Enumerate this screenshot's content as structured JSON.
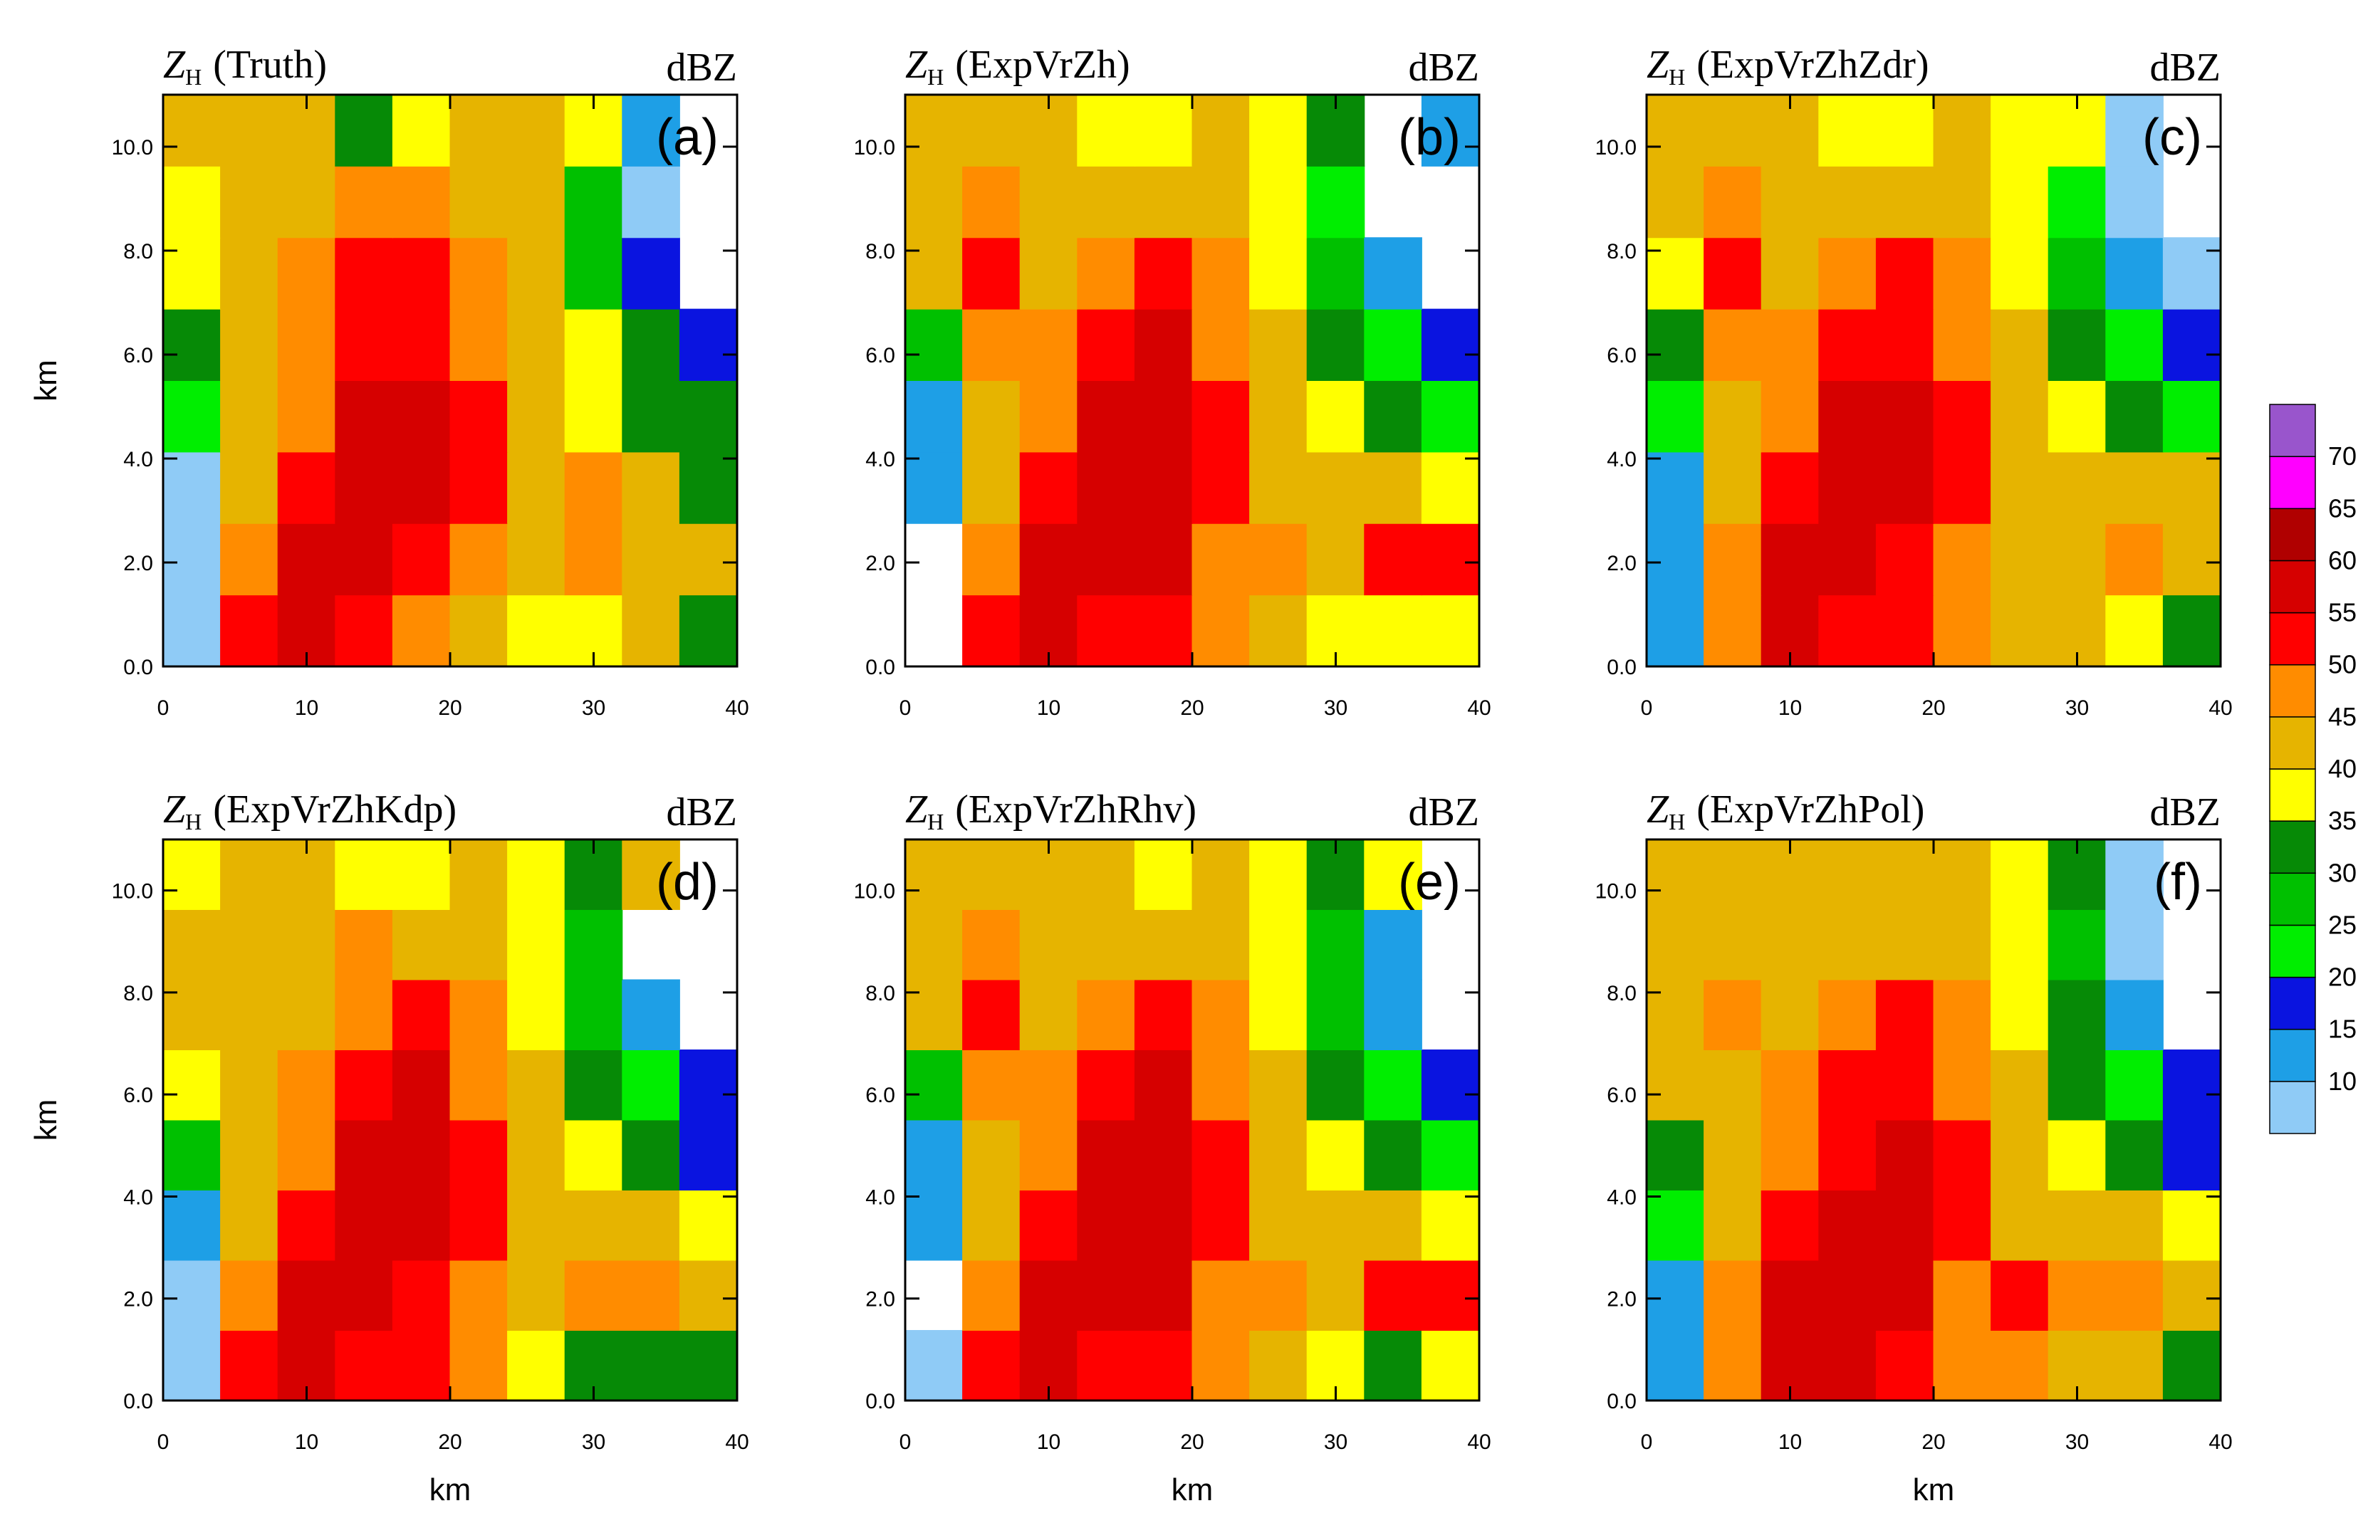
{
  "chart_data": [
    {
      "type": "contour",
      "title_symbol": "Z",
      "title_subscript": "H",
      "title": "(Truth)",
      "units": "dBZ",
      "panel_label": "(a)",
      "ylabel": "km",
      "xlim": [
        0,
        40
      ],
      "ylim": [
        0,
        11
      ],
      "xticks": [
        0,
        10,
        20,
        30,
        40
      ],
      "yticks": [
        {
          "value": 0,
          "label": "0.0"
        },
        {
          "value": 2,
          "label": "2.0"
        },
        {
          "value": 4,
          "label": "4.0"
        },
        {
          "value": 6,
          "label": "6.0"
        },
        {
          "value": 8,
          "label": "8.0"
        },
        {
          "value": 10,
          "label": "10.0"
        }
      ],
      "x": [
        2,
        6,
        10,
        14,
        18,
        22,
        26,
        30,
        34,
        38
      ],
      "y": [
        0.6875,
        2.0625,
        3.4375,
        4.8125,
        6.1875,
        7.5625,
        8.9375,
        10.3125
      ],
      "z": [
        [
          8,
          53,
          57,
          53,
          48,
          44,
          37,
          38,
          40,
          34
        ],
        [
          8,
          48,
          58,
          57,
          52,
          47,
          43,
          45,
          44,
          42
        ],
        [
          8,
          43,
          52,
          58,
          57,
          50,
          43,
          45,
          40,
          33
        ],
        [
          20,
          42,
          47,
          55,
          58,
          50,
          41,
          37,
          33,
          32
        ],
        [
          30,
          42,
          46,
          52,
          54,
          48,
          40,
          35,
          30,
          15
        ],
        [
          35,
          44,
          45,
          50,
          53,
          47,
          40,
          28,
          15,
          null
        ],
        [
          38,
          42,
          44,
          45,
          47,
          44,
          40,
          25,
          8,
          null
        ],
        [
          40,
          42,
          40,
          33,
          38,
          43,
          40,
          35,
          10,
          null
        ]
      ]
    },
    {
      "type": "contour",
      "title_symbol": "Z",
      "title_subscript": "H",
      "title": "(ExpVrZh)",
      "units": "dBZ",
      "panel_label": "(b)",
      "xlim": [
        0,
        40
      ],
      "ylim": [
        0,
        11
      ],
      "xticks": [
        0,
        10,
        20,
        30,
        40
      ],
      "yticks": [
        {
          "value": 0,
          "label": "0.0"
        },
        {
          "value": 2,
          "label": "2.0"
        },
        {
          "value": 4,
          "label": "4.0"
        },
        {
          "value": 6,
          "label": "6.0"
        },
        {
          "value": 8,
          "label": "8.0"
        },
        {
          "value": 10,
          "label": "10.0"
        }
      ],
      "x": [
        2,
        6,
        10,
        14,
        18,
        22,
        26,
        30,
        34,
        38
      ],
      "y": [
        0.6875,
        2.0625,
        3.4375,
        4.8125,
        6.1875,
        7.5625,
        8.9375,
        10.3125
      ],
      "z": [
        [
          null,
          50,
          55,
          53,
          50,
          45,
          42,
          36,
          38,
          35
        ],
        [
          null,
          47,
          56,
          58,
          55,
          48,
          45,
          44,
          52,
          50
        ],
        [
          10,
          43,
          52,
          58,
          57,
          52,
          43,
          42,
          40,
          38
        ],
        [
          10,
          43,
          48,
          55,
          58,
          52,
          43,
          37,
          33,
          20
        ],
        [
          25,
          46,
          46,
          50,
          55,
          48,
          40,
          33,
          20,
          15
        ],
        [
          40,
          52,
          43,
          47,
          50,
          45,
          38,
          25,
          10,
          null
        ],
        [
          42,
          47,
          43,
          42,
          43,
          42,
          37,
          20,
          null,
          null
        ],
        [
          40,
          42,
          43,
          38,
          38,
          40,
          38,
          30,
          null,
          10
        ]
      ]
    },
    {
      "type": "contour",
      "title_symbol": "Z",
      "title_subscript": "H",
      "title": "(ExpVrZhZdr)",
      "units": "dBZ",
      "panel_label": "(c)",
      "xlim": [
        0,
        40
      ],
      "ylim": [
        0,
        11
      ],
      "xticks": [
        0,
        10,
        20,
        30,
        40
      ],
      "yticks": [
        {
          "value": 0,
          "label": "0.0"
        },
        {
          "value": 2,
          "label": "2.0"
        },
        {
          "value": 4,
          "label": "4.0"
        },
        {
          "value": 6,
          "label": "6.0"
        },
        {
          "value": 8,
          "label": "8.0"
        },
        {
          "value": 10,
          "label": "10.0"
        }
      ],
      "x": [
        2,
        6,
        10,
        14,
        18,
        22,
        26,
        30,
        34,
        38
      ],
      "y": [
        0.6875,
        2.0625,
        3.4375,
        4.8125,
        6.1875,
        7.5625,
        8.9375,
        10.3125
      ],
      "z": [
        [
          10,
          48,
          55,
          53,
          50,
          45,
          42,
          40,
          38,
          33
        ],
        [
          10,
          47,
          56,
          58,
          54,
          48,
          43,
          44,
          45,
          43
        ],
        [
          10,
          43,
          52,
          58,
          57,
          50,
          44,
          43,
          42,
          40
        ],
        [
          20,
          43,
          48,
          55,
          57,
          50,
          42,
          38,
          33,
          20
        ],
        [
          30,
          46,
          46,
          50,
          54,
          47,
          40,
          33,
          20,
          15
        ],
        [
          38,
          52,
          43,
          47,
          50,
          45,
          38,
          25,
          10,
          8
        ],
        [
          40,
          46,
          43,
          42,
          43,
          42,
          38,
          20,
          8,
          null
        ],
        [
          40,
          42,
          43,
          38,
          36,
          40,
          38,
          35,
          8,
          null
        ]
      ]
    },
    {
      "type": "contour",
      "title_symbol": "Z",
      "title_subscript": "H",
      "title": "(ExpVrZhKdp)",
      "units": "dBZ",
      "panel_label": "(d)",
      "ylabel": "km",
      "xlabel": "km",
      "xlim": [
        0,
        40
      ],
      "ylim": [
        0,
        11
      ],
      "xticks": [
        0,
        10,
        20,
        30,
        40
      ],
      "yticks": [
        {
          "value": 0,
          "label": "0.0"
        },
        {
          "value": 2,
          "label": "2.0"
        },
        {
          "value": 4,
          "label": "4.0"
        },
        {
          "value": 6,
          "label": "6.0"
        },
        {
          "value": 8,
          "label": "8.0"
        },
        {
          "value": 10,
          "label": "10.0"
        }
      ],
      "x": [
        2,
        6,
        10,
        14,
        18,
        22,
        26,
        30,
        34,
        38
      ],
      "y": [
        0.6875,
        2.0625,
        3.4375,
        4.8125,
        6.1875,
        7.5625,
        8.9375,
        10.3125
      ],
      "z": [
        [
          8,
          52,
          56,
          53,
          50,
          45,
          35,
          33,
          33,
          32
        ],
        [
          8,
          48,
          57,
          58,
          53,
          47,
          44,
          48,
          45,
          42
        ],
        [
          10,
          43,
          53,
          58,
          57,
          50,
          44,
          42,
          40,
          38
        ],
        [
          25,
          42,
          46,
          55,
          58,
          50,
          42,
          35,
          30,
          15
        ],
        [
          35,
          43,
          46,
          52,
          55,
          47,
          40,
          32,
          20,
          15
        ],
        [
          40,
          43,
          44,
          47,
          50,
          45,
          38,
          28,
          10,
          null
        ],
        [
          40,
          42,
          44,
          45,
          43,
          42,
          38,
          25,
          null,
          null
        ],
        [
          38,
          40,
          42,
          38,
          38,
          40,
          38,
          32,
          40,
          null
        ]
      ]
    },
    {
      "type": "contour",
      "title_symbol": "Z",
      "title_subscript": "H",
      "title": "(ExpVrZhRhv)",
      "units": "dBZ",
      "panel_label": "(e)",
      "xlabel": "km",
      "xlim": [
        0,
        40
      ],
      "ylim": [
        0,
        11
      ],
      "xticks": [
        0,
        10,
        20,
        30,
        40
      ],
      "yticks": [
        {
          "value": 0,
          "label": "0.0"
        },
        {
          "value": 2,
          "label": "2.0"
        },
        {
          "value": 4,
          "label": "4.0"
        },
        {
          "value": 6,
          "label": "6.0"
        },
        {
          "value": 8,
          "label": "8.0"
        },
        {
          "value": 10,
          "label": "10.0"
        }
      ],
      "x": [
        2,
        6,
        10,
        14,
        18,
        22,
        26,
        30,
        34,
        38
      ],
      "y": [
        0.6875,
        2.0625,
        3.4375,
        4.8125,
        6.1875,
        7.5625,
        8.9375,
        10.3125
      ],
      "z": [
        [
          8,
          52,
          56,
          53,
          50,
          45,
          40,
          35,
          33,
          35
        ],
        [
          null,
          47,
          56,
          58,
          55,
          48,
          45,
          44,
          52,
          50
        ],
        [
          10,
          43,
          52,
          58,
          57,
          52,
          43,
          42,
          40,
          38
        ],
        [
          10,
          43,
          48,
          55,
          58,
          52,
          43,
          37,
          33,
          20
        ],
        [
          25,
          48,
          46,
          50,
          55,
          48,
          40,
          33,
          20,
          15
        ],
        [
          40,
          53,
          43,
          47,
          50,
          45,
          38,
          25,
          10,
          null
        ],
        [
          42,
          47,
          43,
          42,
          43,
          42,
          37,
          25,
          10,
          null
        ],
        [
          40,
          42,
          43,
          40,
          38,
          40,
          38,
          30,
          35,
          null
        ]
      ]
    },
    {
      "type": "contour",
      "title_symbol": "Z",
      "title_subscript": "H",
      "title": "(ExpVrZhPol)",
      "units": "dBZ",
      "panel_label": "(f)",
      "xlabel": "km",
      "xlim": [
        0,
        40
      ],
      "ylim": [
        0,
        11
      ],
      "xticks": [
        0,
        10,
        20,
        30,
        40
      ],
      "yticks": [
        {
          "value": 0,
          "label": "0.0"
        },
        {
          "value": 2,
          "label": "2.0"
        },
        {
          "value": 4,
          "label": "4.0"
        },
        {
          "value": 6,
          "label": "6.0"
        },
        {
          "value": 8,
          "label": "8.0"
        },
        {
          "value": 10,
          "label": "10.0"
        }
      ],
      "x": [
        2,
        6,
        10,
        14,
        18,
        22,
        26,
        30,
        34,
        38
      ],
      "y": [
        0.6875,
        2.0625,
        3.4375,
        4.8125,
        6.1875,
        7.5625,
        8.9375,
        10.3125
      ],
      "z": [
        [
          10,
          48,
          55,
          55,
          52,
          47,
          48,
          42,
          40,
          33
        ],
        [
          10,
          45,
          55,
          57,
          55,
          48,
          52,
          48,
          45,
          42
        ],
        [
          20,
          43,
          50,
          57,
          57,
          50,
          44,
          44,
          42,
          38
        ],
        [
          30,
          43,
          47,
          53,
          56,
          50,
          42,
          37,
          33,
          15
        ],
        [
          40,
          43,
          45,
          50,
          52,
          47,
          40,
          33,
          20,
          15
        ],
        [
          40,
          45,
          43,
          46,
          50,
          45,
          38,
          30,
          10,
          null
        ],
        [
          40,
          43,
          43,
          43,
          43,
          42,
          38,
          25,
          8,
          null
        ],
        [
          40,
          42,
          43,
          40,
          40,
          40,
          38,
          32,
          8,
          null
        ]
      ]
    }
  ],
  "colorbar": {
    "levels": [
      10,
      15,
      20,
      25,
      30,
      35,
      40,
      45,
      50,
      55,
      60,
      65,
      70
    ],
    "colors": [
      "#8fcbf6",
      "#1e9fe6",
      "#0a14e0",
      "#00ee00",
      "#00c000",
      "#068a06",
      "#ffff00",
      "#e6b400",
      "#ff8c00",
      "#ff0000",
      "#d60000",
      "#b00000",
      "#ff00ff",
      "#9955cc"
    ]
  }
}
